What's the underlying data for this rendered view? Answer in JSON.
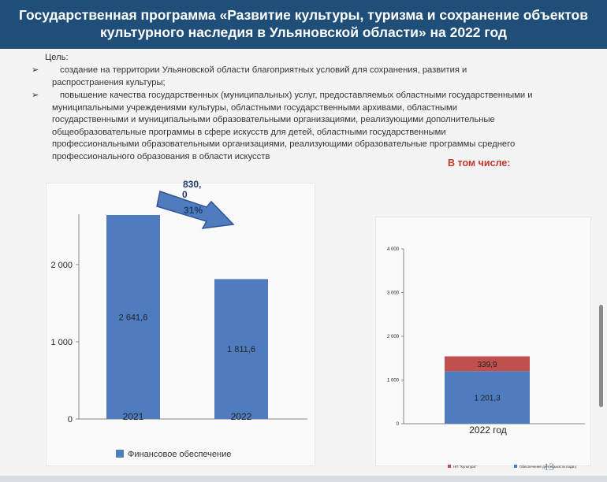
{
  "header": {
    "title_line1": "Государственная программа «Развитие культуры, туризма и сохранение объектов",
    "title_line2": "культурного наследия в Ульяновской области» на 2022 год"
  },
  "goal": {
    "label": "Цель:",
    "bullet": "➢",
    "items": [
      [
        "создание на территории Ульяновской области благоприятных условий для сохранения, развития и",
        "распространения культуры;"
      ],
      [
        "повышение качества государственных (муниципальных) услуг, предоставляемых областными государственными и",
        "муниципальными учреждениями культуры, областными государственными архивами, областными",
        "государственными и муниципальными образовательными организациями, реализующими дополнительные",
        "общеобразовательные программы в сфере искусств для детей, областными государственными",
        "профессиональными образовательными организациями, реализующими образовательные программы среднего",
        "профессионального образования в области искусств"
      ]
    ]
  },
  "including_label": "В том числе:",
  "page_number": "13",
  "colors": {
    "bar": "#4f7bbf",
    "bar_dark": "#3d68a8",
    "red": "#c0504d",
    "header": "#1f4e79"
  },
  "chart_data": [
    {
      "type": "bar",
      "categories": [
        "2021",
        "2022"
      ],
      "values": [
        2641.6,
        1811.6
      ],
      "value_labels": [
        "2 641,6",
        "1 811,6"
      ],
      "yticks": [
        0,
        1000,
        2000
      ],
      "ytick_labels": [
        "0",
        "1 000",
        "2 000"
      ],
      "ylim": [
        0,
        2641.6
      ],
      "legend": "Финансовое обеспечение",
      "legend_placement": "bottom",
      "annotation": {
        "lines": [
          "830,",
          "0"
        ],
        "percent": "31%"
      }
    },
    {
      "type": "bar",
      "stacked": true,
      "categories": [
        "2022 год"
      ],
      "yticks": [
        0,
        1000,
        2000,
        3000,
        4000
      ],
      "ytick_labels": [
        "0",
        "1 000",
        "2 000",
        "3 000",
        "4 000"
      ],
      "ylim": [
        0,
        4000
      ],
      "series": [
        {
          "name": "Обеспечение деятельности подв.у",
          "values": [
            1201.3
          ],
          "label": "1 201,3",
          "color": "#4f7bbf"
        },
        {
          "name": "НП \"Культура\"",
          "values": [
            339.9
          ],
          "label": "339,9",
          "color": "#c0504d"
        }
      ],
      "legend_placement": "bottom"
    }
  ]
}
